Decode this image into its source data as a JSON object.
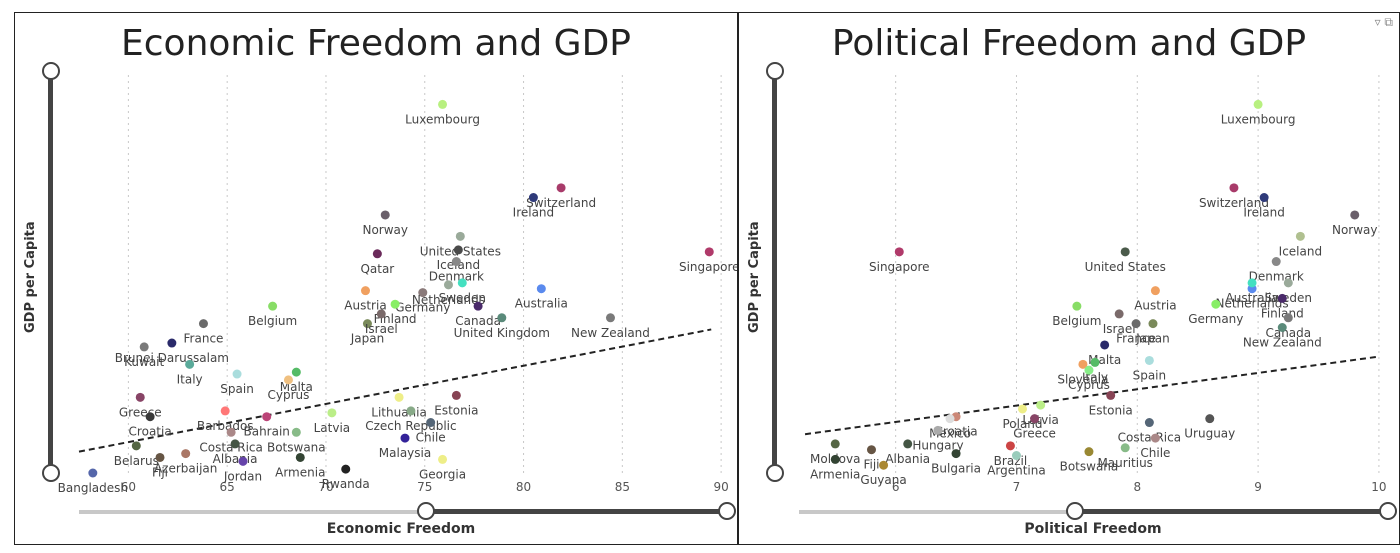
{
  "panels": [
    {
      "title": "Economic Freedom and GDP",
      "ylabel": "GDP per Capita",
      "xlabel": "Economic Freedom"
    },
    {
      "title": "Political Freedom and GDP",
      "ylabel": "GDP per Capita",
      "xlabel": "Political Freedom",
      "icons": [
        "filter-icon",
        "expand-icon"
      ]
    }
  ],
  "chart_data": [
    {
      "type": "scatter",
      "title": "Economic Freedom and GDP",
      "xlabel": "Economic Freedom",
      "ylabel": "GDP per Capita",
      "xlim": [
        57.5,
        90.5
      ],
      "ylim": [
        0,
        1
      ],
      "x_ticks": [
        60,
        65,
        70,
        75,
        80,
        85,
        90
      ],
      "trendline": {
        "style": "dashed",
        "x": [
          57.5,
          89.5
        ],
        "y": [
          0.055,
          0.37
        ]
      },
      "points": [
        {
          "label": "Luxembourg",
          "x": 75.9,
          "y": 0.95,
          "color": "#b8f080"
        },
        {
          "label": "Switzerland",
          "x": 81.9,
          "y": 0.735,
          "color": "#a83b6a"
        },
        {
          "label": "Ireland",
          "x": 80.5,
          "y": 0.71,
          "color": "#2f3a7a"
        },
        {
          "label": "Singapore",
          "x": 89.4,
          "y": 0.57,
          "color": "#b03a6a"
        },
        {
          "label": "Norway",
          "x": 73.0,
          "y": 0.665,
          "color": "#6a5f6a"
        },
        {
          "label": "United States",
          "x": 76.8,
          "y": 0.61,
          "color": "#9aaa9a"
        },
        {
          "label": "Iceland",
          "x": 76.7,
          "y": 0.575,
          "color": "#4a4a4a"
        },
        {
          "label": "Qatar",
          "x": 72.6,
          "y": 0.565,
          "color": "#6a2a5a"
        },
        {
          "label": "Denmark",
          "x": 76.6,
          "y": 0.545,
          "color": "#888888"
        },
        {
          "label": "Australia",
          "x": 80.9,
          "y": 0.475,
          "color": "#5a8aee"
        },
        {
          "label": "Germany",
          "x": 74.9,
          "y": 0.465,
          "color": "#8a7a7a"
        },
        {
          "label": "Netherlands",
          "x": 76.2,
          "y": 0.485,
          "color": "#9aaa9a"
        },
        {
          "label": "Sweden",
          "x": 76.9,
          "y": 0.49,
          "color": "#44e0c0"
        },
        {
          "label": "Austria",
          "x": 72.0,
          "y": 0.47,
          "color": "#f0a060"
        },
        {
          "label": "Finland",
          "x": 73.5,
          "y": 0.435,
          "color": "#88ee66"
        },
        {
          "label": "Canada",
          "x": 77.7,
          "y": 0.43,
          "color": "#4a2a6a"
        },
        {
          "label": "United Kingdom",
          "x": 78.9,
          "y": 0.4,
          "color": "#5a8a7a"
        },
        {
          "label": "New Zealand",
          "x": 84.4,
          "y": 0.4,
          "color": "#7a7a7a"
        },
        {
          "label": "Japan",
          "x": 72.1,
          "y": 0.385,
          "color": "#7a8a5a"
        },
        {
          "label": "Israel",
          "x": 72.8,
          "y": 0.41,
          "color": "#7a6a6a"
        },
        {
          "label": "Belgium",
          "x": 67.3,
          "y": 0.43,
          "color": "#88dd66"
        },
        {
          "label": "France",
          "x": 63.8,
          "y": 0.385,
          "color": "#6a6a6a"
        },
        {
          "label": "Brunei Darussalam",
          "x": 62.2,
          "y": 0.335,
          "color": "#2a2a6a"
        },
        {
          "label": "Kuwait",
          "x": 60.8,
          "y": 0.325,
          "color": "#7a7a7a"
        },
        {
          "label": "Italy",
          "x": 63.1,
          "y": 0.28,
          "color": "#5aaa9a"
        },
        {
          "label": "Malta",
          "x": 68.5,
          "y": 0.26,
          "color": "#55bb66"
        },
        {
          "label": "Cyprus",
          "x": 68.1,
          "y": 0.24,
          "color": "#f0c080"
        },
        {
          "label": "Spain",
          "x": 65.5,
          "y": 0.255,
          "color": "#aadddd"
        },
        {
          "label": "Greece",
          "x": 60.6,
          "y": 0.195,
          "color": "#884466"
        },
        {
          "label": "Lithuania",
          "x": 73.7,
          "y": 0.195,
          "color": "#eeee88"
        },
        {
          "label": "Estonia",
          "x": 76.6,
          "y": 0.2,
          "color": "#884455"
        },
        {
          "label": "Latvia",
          "x": 70.3,
          "y": 0.155,
          "color": "#bbee88"
        },
        {
          "label": "Czech Republic",
          "x": 74.3,
          "y": 0.16,
          "color": "#88aa88"
        },
        {
          "label": "Bahrain",
          "x": 67.0,
          "y": 0.145,
          "color": "#bb4477"
        },
        {
          "label": "Croatia",
          "x": 61.1,
          "y": 0.145,
          "color": "#3a3a3a"
        },
        {
          "label": "Barbados",
          "x": 64.9,
          "y": 0.16,
          "color": "#ff7777"
        },
        {
          "label": "Costa Rica",
          "x": 65.2,
          "y": 0.105,
          "color": "#aa8888"
        },
        {
          "label": "Botswana",
          "x": 68.5,
          "y": 0.105,
          "color": "#88bb88"
        },
        {
          "label": "Malaysia",
          "x": 74.0,
          "y": 0.09,
          "color": "#332299"
        },
        {
          "label": "Chile",
          "x": 75.3,
          "y": 0.13,
          "color": "#556677"
        },
        {
          "label": "Albania",
          "x": 65.4,
          "y": 0.075,
          "color": "#445544"
        },
        {
          "label": "Belarus",
          "x": 60.4,
          "y": 0.07,
          "color": "#556644"
        },
        {
          "label": "Azerbaijan",
          "x": 62.9,
          "y": 0.05,
          "color": "#aa7766"
        },
        {
          "label": "Fiji",
          "x": 61.6,
          "y": 0.04,
          "color": "#665544"
        },
        {
          "label": "Armenia",
          "x": 68.7,
          "y": 0.04,
          "color": "#334433"
        },
        {
          "label": "Rwanda",
          "x": 71.0,
          "y": 0.01,
          "color": "#222222"
        },
        {
          "label": "Georgia",
          "x": 75.9,
          "y": 0.035,
          "color": "#eeee88"
        },
        {
          "label": "Jordan",
          "x": 65.8,
          "y": 0.03,
          "color": "#6644aa"
        },
        {
          "label": "Bangladesh",
          "x": 58.2,
          "y": 0.0,
          "color": "#5566aa"
        }
      ]
    },
    {
      "type": "scatter",
      "title": "Political Freedom and GDP",
      "xlabel": "Political Freedom",
      "ylabel": "GDP per Capita",
      "xlim": [
        5.2,
        10.1
      ],
      "ylim": [
        0,
        1
      ],
      "x_ticks": [
        6,
        7,
        8,
        9,
        10
      ],
      "trendline": {
        "style": "dashed",
        "x": [
          5.25,
          10.0
        ],
        "y": [
          0.1,
          0.3
        ]
      },
      "points": [
        {
          "label": "Luxembourg",
          "x": 9.0,
          "y": 0.95,
          "color": "#b8f080"
        },
        {
          "label": "Switzerland",
          "x": 8.8,
          "y": 0.735,
          "color": "#a83b6a"
        },
        {
          "label": "Ireland",
          "x": 9.05,
          "y": 0.71,
          "color": "#2f3a7a"
        },
        {
          "label": "Norway",
          "x": 9.8,
          "y": 0.665,
          "color": "#6a5f6a"
        },
        {
          "label": "Iceland",
          "x": 9.35,
          "y": 0.61,
          "color": "#b0c090"
        },
        {
          "label": "Singapore",
          "x": 6.03,
          "y": 0.57,
          "color": "#b03a6a"
        },
        {
          "label": "United States",
          "x": 7.9,
          "y": 0.57,
          "color": "#4a5a4a"
        },
        {
          "label": "Denmark",
          "x": 9.15,
          "y": 0.545,
          "color": "#888888"
        },
        {
          "label": "Netherlands",
          "x": 8.95,
          "y": 0.475,
          "color": "#5a8aee"
        },
        {
          "label": "Sweden",
          "x": 9.25,
          "y": 0.49,
          "color": "#9aaa9a"
        },
        {
          "label": "Australia",
          "x": 8.95,
          "y": 0.49,
          "color": "#44e0c0"
        },
        {
          "label": "Finland",
          "x": 9.2,
          "y": 0.45,
          "color": "#4a2a6a"
        },
        {
          "label": "Austria",
          "x": 8.15,
          "y": 0.47,
          "color": "#f0a060"
        },
        {
          "label": "Germany",
          "x": 8.65,
          "y": 0.435,
          "color": "#88ee66"
        },
        {
          "label": "Israel",
          "x": 7.85,
          "y": 0.41,
          "color": "#7a6a6a"
        },
        {
          "label": "Belgium",
          "x": 7.5,
          "y": 0.43,
          "color": "#88dd66"
        },
        {
          "label": "Japan",
          "x": 8.13,
          "y": 0.385,
          "color": "#7a8a5a"
        },
        {
          "label": "Canada",
          "x": 9.25,
          "y": 0.4,
          "color": "#7a7a7a"
        },
        {
          "label": "New Zealand",
          "x": 9.2,
          "y": 0.375,
          "color": "#5a8a7a"
        },
        {
          "label": "France",
          "x": 7.99,
          "y": 0.385,
          "color": "#6a6a6a"
        },
        {
          "label": "Malta",
          "x": 7.73,
          "y": 0.33,
          "color": "#2a2a6a"
        },
        {
          "label": "Slovenia",
          "x": 7.55,
          "y": 0.28,
          "color": "#f0a060"
        },
        {
          "label": "Italy",
          "x": 7.65,
          "y": 0.285,
          "color": "#55bb66"
        },
        {
          "label": "Spain",
          "x": 8.1,
          "y": 0.29,
          "color": "#aadddd"
        },
        {
          "label": "Cyprus",
          "x": 7.6,
          "y": 0.265,
          "color": "#88ee88"
        },
        {
          "label": "Estonia",
          "x": 7.78,
          "y": 0.2,
          "color": "#884455"
        },
        {
          "label": "Latvia",
          "x": 7.2,
          "y": 0.175,
          "color": "#bbee88"
        },
        {
          "label": "Poland",
          "x": 7.05,
          "y": 0.165,
          "color": "#eeee88"
        },
        {
          "label": "Croatia",
          "x": 6.5,
          "y": 0.145,
          "color": "#cc8877"
        },
        {
          "label": "Greece",
          "x": 7.15,
          "y": 0.14,
          "color": "#884466"
        },
        {
          "label": "Mexico",
          "x": 6.45,
          "y": 0.14,
          "color": "#dddddd"
        },
        {
          "label": "Hungary",
          "x": 6.35,
          "y": 0.11,
          "color": "#aaaaaa"
        },
        {
          "label": "Costa Rica",
          "x": 8.1,
          "y": 0.13,
          "color": "#556677"
        },
        {
          "label": "Uruguay",
          "x": 8.6,
          "y": 0.14,
          "color": "#555555"
        },
        {
          "label": "Chile",
          "x": 8.15,
          "y": 0.09,
          "color": "#aa8888"
        },
        {
          "label": "Mauritius",
          "x": 7.9,
          "y": 0.065,
          "color": "#88bb88"
        },
        {
          "label": "Brazil",
          "x": 6.95,
          "y": 0.07,
          "color": "#cc4444"
        },
        {
          "label": "Argentina",
          "x": 7.0,
          "y": 0.045,
          "color": "#99ccbb"
        },
        {
          "label": "Bulgaria",
          "x": 6.5,
          "y": 0.05,
          "color": "#334433"
        },
        {
          "label": "Albania",
          "x": 6.1,
          "y": 0.075,
          "color": "#445544"
        },
        {
          "label": "Fiji",
          "x": 5.8,
          "y": 0.06,
          "color": "#665544"
        },
        {
          "label": "Moldova",
          "x": 5.5,
          "y": 0.075,
          "color": "#556644"
        },
        {
          "label": "Armenia",
          "x": 5.5,
          "y": 0.035,
          "color": "#334433"
        },
        {
          "label": "Guyana",
          "x": 5.9,
          "y": 0.02,
          "color": "#aa8833"
        },
        {
          "label": "Botswana",
          "x": 7.6,
          "y": 0.055,
          "color": "#998833"
        }
      ]
    }
  ]
}
